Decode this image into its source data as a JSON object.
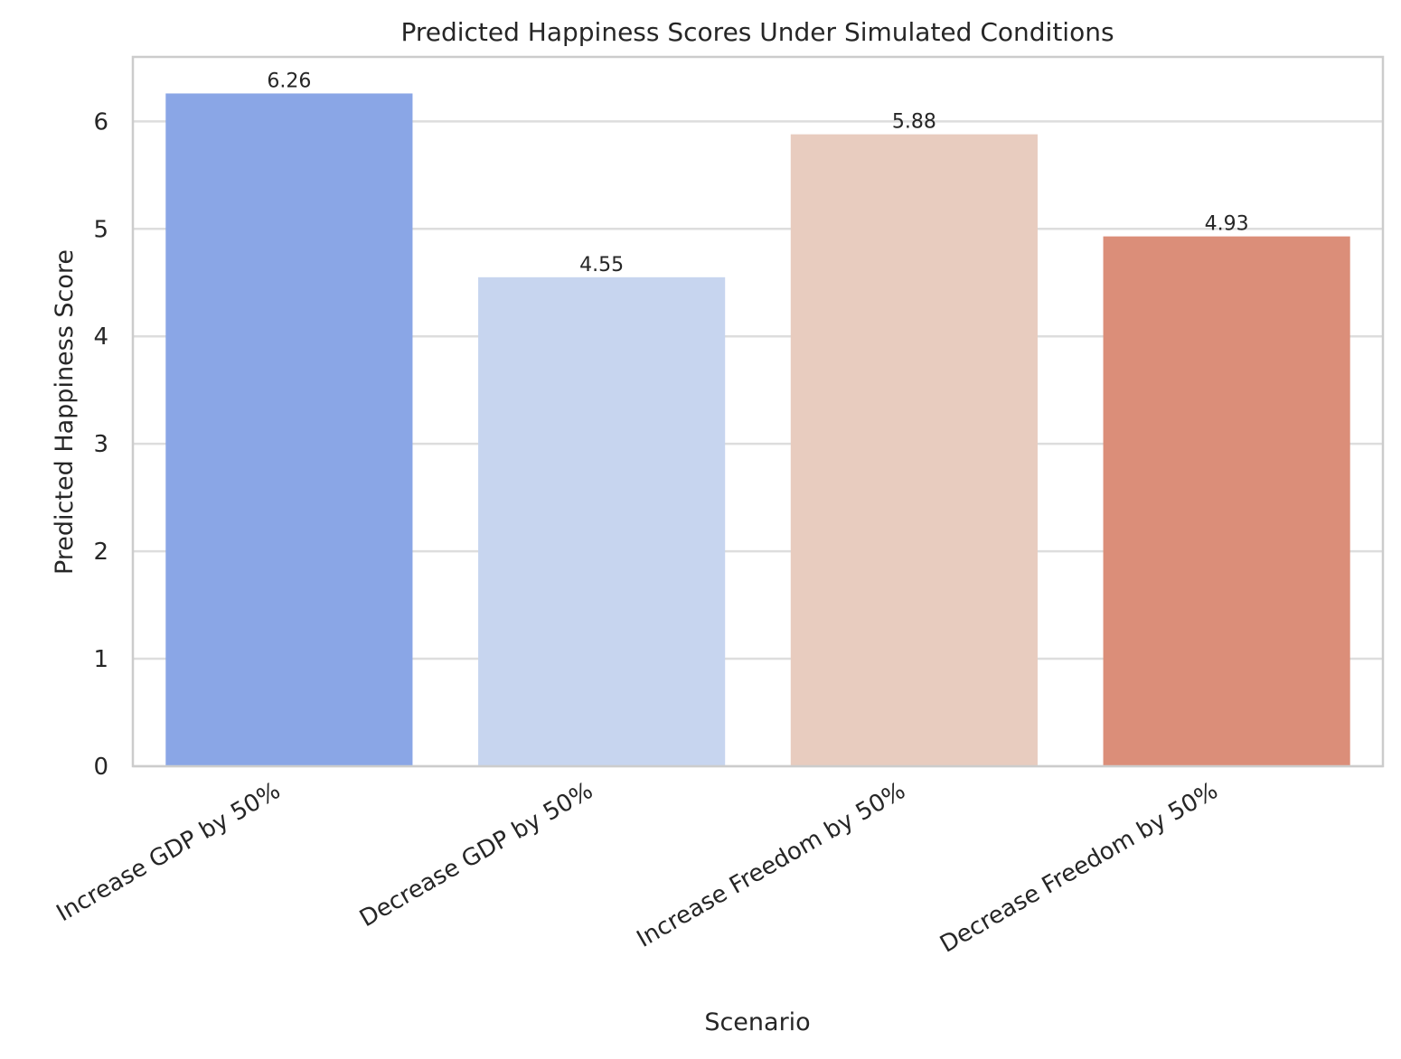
{
  "chart_data": {
    "type": "bar",
    "title": "Predicted Happiness Scores Under Simulated Conditions",
    "xlabel": "Scenario",
    "ylabel": "Predicted Happiness Score",
    "categories": [
      "Increase GDP by 50%",
      "Decrease GDP by 50%",
      "Increase Freedom by 50%",
      "Decrease Freedom by 50%"
    ],
    "values": [
      6.26,
      4.55,
      5.88,
      4.93
    ],
    "value_labels": [
      "6.26",
      "4.55",
      "5.88",
      "4.93"
    ],
    "colors": [
      "#8aa6e6",
      "#c7d5ef",
      "#e8ccbf",
      "#db8e79"
    ],
    "ylim": [
      0,
      6.6
    ],
    "yticks": [
      0,
      1,
      2,
      3,
      4,
      5,
      6
    ],
    "grid": true,
    "legend": "none"
  }
}
